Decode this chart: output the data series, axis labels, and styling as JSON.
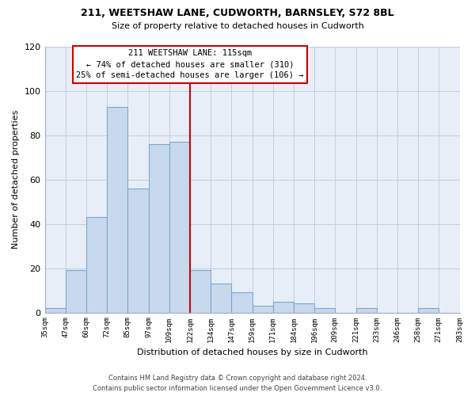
{
  "title_line1": "211, WEETSHAW LANE, CUDWORTH, BARNSLEY, S72 8BL",
  "title_line2": "Size of property relative to detached houses in Cudworth",
  "xlabel": "Distribution of detached houses by size in Cudworth",
  "ylabel": "Number of detached properties",
  "bar_labels": [
    "35sqm",
    "47sqm",
    "60sqm",
    "72sqm",
    "85sqm",
    "97sqm",
    "109sqm",
    "122sqm",
    "134sqm",
    "147sqm",
    "159sqm",
    "171sqm",
    "184sqm",
    "196sqm",
    "209sqm",
    "221sqm",
    "233sqm",
    "246sqm",
    "258sqm",
    "271sqm",
    "283sqm"
  ],
  "bar_values": [
    2,
    19,
    43,
    93,
    56,
    76,
    77,
    19,
    13,
    9,
    3,
    5,
    4,
    2,
    0,
    2,
    0,
    0,
    2,
    0
  ],
  "bar_color": "#c8d8ed",
  "bar_edge_color": "#7aabcc",
  "vline_x": 7,
  "vline_color": "#cc0000",
  "annotation_title": "211 WEETSHAW LANE: 115sqm",
  "annotation_line1": "← 74% of detached houses are smaller (310)",
  "annotation_line2": "25% of semi-detached houses are larger (106) →",
  "annotation_box_color": "#ffffff",
  "annotation_box_edge": "#cc0000",
  "ylim": [
    0,
    120
  ],
  "yticks": [
    0,
    20,
    40,
    60,
    80,
    100,
    120
  ],
  "footer_line1": "Contains HM Land Registry data © Crown copyright and database right 2024.",
  "footer_line2": "Contains public sector information licensed under the Open Government Licence v3.0.",
  "background_color": "#ffffff",
  "plot_bg_color": "#e8eef8",
  "grid_color": "#c0cce0"
}
